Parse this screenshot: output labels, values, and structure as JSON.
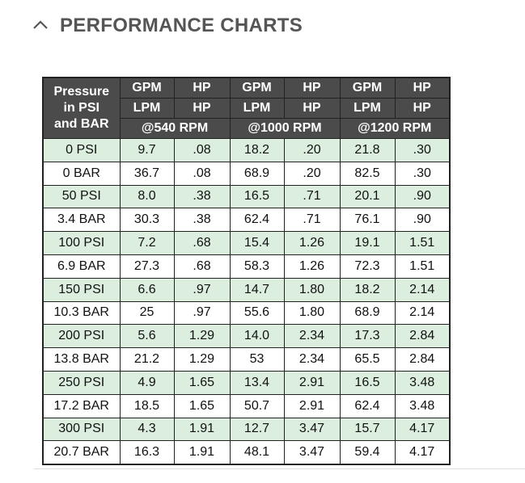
{
  "header": {
    "title": "PERFORMANCE CHARTS"
  },
  "table": {
    "corner": [
      "Pressure",
      "in PSI",
      "and BAR"
    ],
    "units_row1": [
      "GPM",
      "HP",
      "GPM",
      "HP",
      "GPM",
      "HP"
    ],
    "units_row2": [
      "LPM",
      "HP",
      "LPM",
      "HP",
      "LPM",
      "HP"
    ],
    "speeds": [
      "@540 RPM",
      "@1000 RPM",
      "@1200 RPM"
    ],
    "rows": [
      [
        "0 PSI",
        "9.7",
        ".08",
        "18.2",
        ".20",
        "21.8",
        ".30"
      ],
      [
        "0 BAR",
        "36.7",
        ".08",
        "68.9",
        ".20",
        "82.5",
        ".30"
      ],
      [
        "50 PSI",
        "8.0",
        ".38",
        "16.5",
        ".71",
        "20.1",
        ".90"
      ],
      [
        "3.4 BAR",
        "30.3",
        ".38",
        "62.4",
        ".71",
        "76.1",
        ".90"
      ],
      [
        "100 PSI",
        "7.2",
        ".68",
        "15.4",
        "1.26",
        "19.1",
        "1.51"
      ],
      [
        "6.9 BAR",
        "27.3",
        ".68",
        "58.3",
        "1.26",
        "72.3",
        "1.51"
      ],
      [
        "150 PSI",
        "6.6",
        ".97",
        "14.7",
        "1.80",
        "18.2",
        "2.14"
      ],
      [
        "10.3 BAR",
        "25",
        ".97",
        "55.6",
        "1.80",
        "68.9",
        "2.14"
      ],
      [
        "200 PSI",
        "5.6",
        "1.29",
        "14.0",
        "2.34",
        "17.3",
        "2.84"
      ],
      [
        "13.8 BAR",
        "21.2",
        "1.29",
        "53",
        "2.34",
        "65.5",
        "2.84"
      ],
      [
        "250 PSI",
        "4.9",
        "1.65",
        "13.4",
        "2.91",
        "16.5",
        "3.48"
      ],
      [
        "17.2 BAR",
        "18.5",
        "1.65",
        "50.7",
        "2.91",
        "62.4",
        "3.48"
      ],
      [
        "300 PSI",
        "4.3",
        "1.91",
        "12.7",
        "3.47",
        "15.7",
        "4.17"
      ],
      [
        "20.7 BAR",
        "16.3",
        "1.91",
        "48.1",
        "3.47",
        "59.4",
        "4.17"
      ]
    ]
  }
}
